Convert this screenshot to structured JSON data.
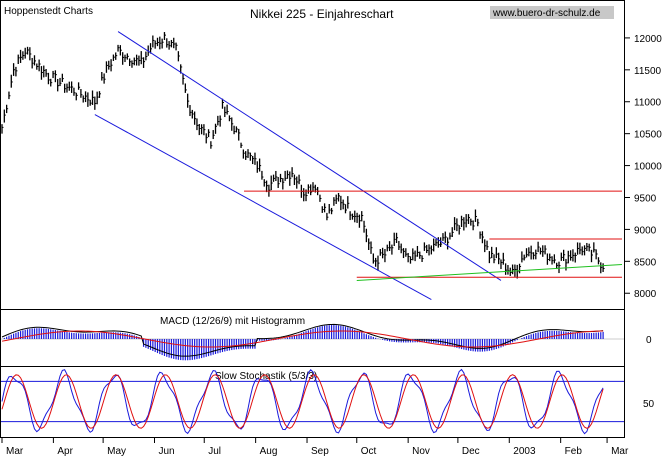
{
  "header": {
    "source": "Hoppenstedt Charts",
    "title": "Nikkei 225 - Einjahreschart",
    "website": "www.buero-dr-schulz.de"
  },
  "chart_data": [
    {
      "type": "line",
      "panel": "price",
      "title": "Nikkei 225 - Einjahreschart",
      "ylim": [
        7800,
        12500
      ],
      "yticks": [
        8000,
        8500,
        9000,
        9500,
        10000,
        10500,
        11000,
        11500,
        12000
      ],
      "x_labels": [
        "Mar",
        "Apr",
        "May",
        "Jun",
        "Jul",
        "Aug",
        "Sep",
        "Oct",
        "Nov",
        "Dec",
        "2003",
        "Feb",
        "Mar"
      ],
      "x": [
        "2002-03-01",
        "2002-03-08",
        "2002-03-15",
        "2002-03-22",
        "2002-03-29",
        "2002-04-05",
        "2002-04-12",
        "2002-04-19",
        "2002-04-26",
        "2002-05-03",
        "2002-05-10",
        "2002-05-17",
        "2002-05-24",
        "2002-05-31",
        "2002-06-07",
        "2002-06-14",
        "2002-06-21",
        "2002-06-28",
        "2002-07-05",
        "2002-07-12",
        "2002-07-19",
        "2002-07-26",
        "2002-08-02",
        "2002-08-09",
        "2002-08-16",
        "2002-08-23",
        "2002-08-30",
        "2002-09-06",
        "2002-09-13",
        "2002-09-20",
        "2002-09-27",
        "2002-10-04",
        "2002-10-11",
        "2002-10-18",
        "2002-10-25",
        "2002-11-01",
        "2002-11-08",
        "2002-11-15",
        "2002-11-22",
        "2002-11-29",
        "2002-12-06",
        "2002-12-13",
        "2002-12-20",
        "2002-12-27",
        "2003-01-03",
        "2003-01-10",
        "2003-01-17",
        "2003-01-24",
        "2003-01-31",
        "2003-02-07",
        "2003-02-14",
        "2003-02-21",
        "2003-02-28"
      ],
      "series": [
        {
          "name": "",
          "values": [
            10600,
            11500,
            11800,
            11600,
            11400,
            11300,
            11200,
            11100,
            11000,
            11500,
            11800,
            11700,
            11600,
            11900,
            12000,
            11800,
            11000,
            10600,
            10400,
            10900,
            10600,
            10200,
            10000,
            9700,
            9800,
            9900,
            9600,
            9700,
            9200,
            9500,
            9300,
            9200,
            8500,
            8600,
            8800,
            8500,
            8600,
            8700,
            8800,
            9000,
            9200,
            9100,
            8600,
            8500,
            8300,
            8600,
            8700,
            8600,
            8500,
            8600,
            8700,
            8600,
            8400
          ]
        }
      ],
      "annotations": [
        {
          "label": "downtrend channel upper",
          "from": [
            "2002-05-10",
            12100
          ],
          "to": [
            "2002-12-27",
            8200
          ]
        },
        {
          "label": "downtrend channel lower",
          "from": [
            "2002-04-26",
            10800
          ],
          "to": [
            "2002-11-15",
            7900
          ]
        },
        {
          "label": "resistance",
          "value": 9600
        },
        {
          "label": "resistance",
          "value": 8850
        },
        {
          "label": "support",
          "value": 8250
        },
        {
          "label": "rising support",
          "from": [
            "2002-10-01",
            8200
          ],
          "to": [
            "2003-03-10",
            8450
          ]
        }
      ]
    },
    {
      "type": "bar",
      "panel": "macd",
      "title": "MACD (12/26/9) mit Histogramm",
      "ylabel": "",
      "yticks": [
        0
      ],
      "note": "histogram plus MACD and signal lines"
    },
    {
      "type": "line",
      "panel": "stochastic",
      "title": "Slow Stochastik (5/3/3)",
      "ylim": [
        0,
        100
      ],
      "yticks": [
        50
      ],
      "levels": [
        80,
        20
      ]
    }
  ],
  "colors": {
    "price": "#000000",
    "channel": "#1a1adc",
    "resistance": "#e01010",
    "support_line": "#20c020",
    "macd_hist": "#1a1adc",
    "macd_line": "#000000",
    "signal_line": "#e01010",
    "stoch_k": "#1a1adc",
    "stoch_d": "#e01010"
  }
}
